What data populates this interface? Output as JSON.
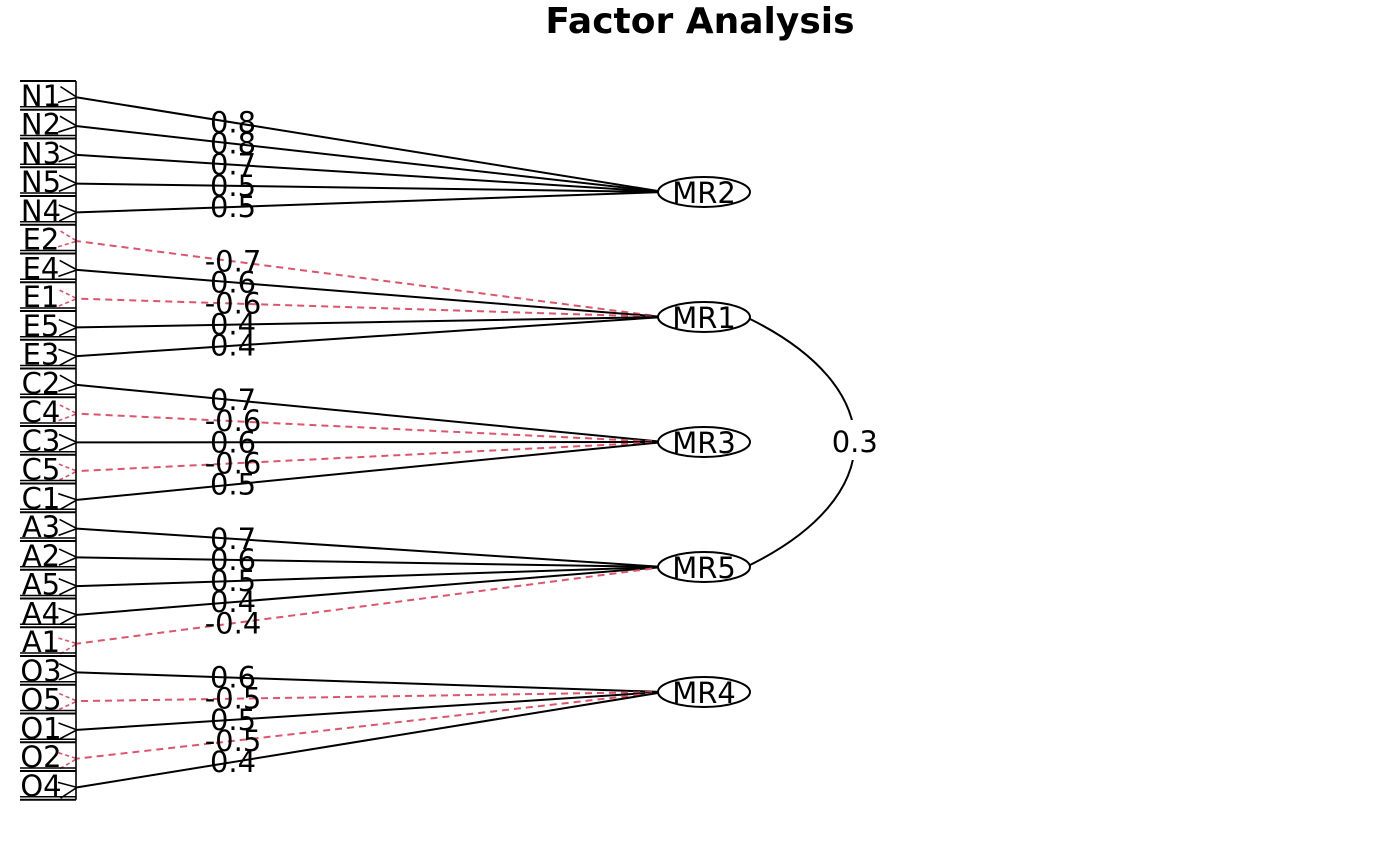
{
  "title": "Factor Analysis",
  "colors": {
    "positive": "#000000",
    "negative": "#DF536B",
    "background": "#FFFFFF"
  },
  "factors": [
    {
      "id": "MR2",
      "label": "MR2"
    },
    {
      "id": "MR1",
      "label": "MR1"
    },
    {
      "id": "MR3",
      "label": "MR3"
    },
    {
      "id": "MR5",
      "label": "MR5"
    },
    {
      "id": "MR4",
      "label": "MR4"
    }
  ],
  "variables": [
    "N1",
    "N2",
    "N3",
    "N5",
    "N4",
    "E2",
    "E4",
    "E1",
    "E5",
    "E3",
    "C2",
    "C4",
    "C3",
    "C5",
    "C1",
    "A3",
    "A2",
    "A5",
    "A4",
    "A1",
    "O3",
    "O5",
    "O1",
    "O2",
    "O4"
  ],
  "loadings": [
    {
      "variable": "N1",
      "factor": "MR2",
      "value": "0.8",
      "sign": "positive"
    },
    {
      "variable": "N2",
      "factor": "MR2",
      "value": "0.8",
      "sign": "positive"
    },
    {
      "variable": "N3",
      "factor": "MR2",
      "value": "0.7",
      "sign": "positive"
    },
    {
      "variable": "N5",
      "factor": "MR2",
      "value": "0.5",
      "sign": "positive"
    },
    {
      "variable": "N4",
      "factor": "MR2",
      "value": "0.5",
      "sign": "positive"
    },
    {
      "variable": "E2",
      "factor": "MR1",
      "value": "-0.7",
      "sign": "negative"
    },
    {
      "variable": "E4",
      "factor": "MR1",
      "value": "0.6",
      "sign": "positive"
    },
    {
      "variable": "E1",
      "factor": "MR1",
      "value": "-0.6",
      "sign": "negative"
    },
    {
      "variable": "E5",
      "factor": "MR1",
      "value": "0.4",
      "sign": "positive"
    },
    {
      "variable": "E3",
      "factor": "MR1",
      "value": "0.4",
      "sign": "positive"
    },
    {
      "variable": "C2",
      "factor": "MR3",
      "value": "0.7",
      "sign": "positive"
    },
    {
      "variable": "C4",
      "factor": "MR3",
      "value": "-0.6",
      "sign": "negative"
    },
    {
      "variable": "C3",
      "factor": "MR3",
      "value": "0.6",
      "sign": "positive"
    },
    {
      "variable": "C5",
      "factor": "MR3",
      "value": "-0.6",
      "sign": "negative"
    },
    {
      "variable": "C1",
      "factor": "MR3",
      "value": "0.5",
      "sign": "positive"
    },
    {
      "variable": "A3",
      "factor": "MR5",
      "value": "0.7",
      "sign": "positive"
    },
    {
      "variable": "A2",
      "factor": "MR5",
      "value": "0.6",
      "sign": "positive"
    },
    {
      "variable": "A5",
      "factor": "MR5",
      "value": "0.5",
      "sign": "positive"
    },
    {
      "variable": "A4",
      "factor": "MR5",
      "value": "0.4",
      "sign": "positive"
    },
    {
      "variable": "A1",
      "factor": "MR5",
      "value": "-0.4",
      "sign": "negative"
    },
    {
      "variable": "O3",
      "factor": "MR4",
      "value": "0.6",
      "sign": "positive"
    },
    {
      "variable": "O5",
      "factor": "MR4",
      "value": "-0.5",
      "sign": "negative"
    },
    {
      "variable": "O1",
      "factor": "MR4",
      "value": "0.5",
      "sign": "positive"
    },
    {
      "variable": "O2",
      "factor": "MR4",
      "value": "-0.5",
      "sign": "negative"
    },
    {
      "variable": "O4",
      "factor": "MR4",
      "value": "0.4",
      "sign": "positive"
    }
  ],
  "correlations": [
    {
      "from": "MR1",
      "to": "MR5",
      "value": "0.3"
    }
  ]
}
